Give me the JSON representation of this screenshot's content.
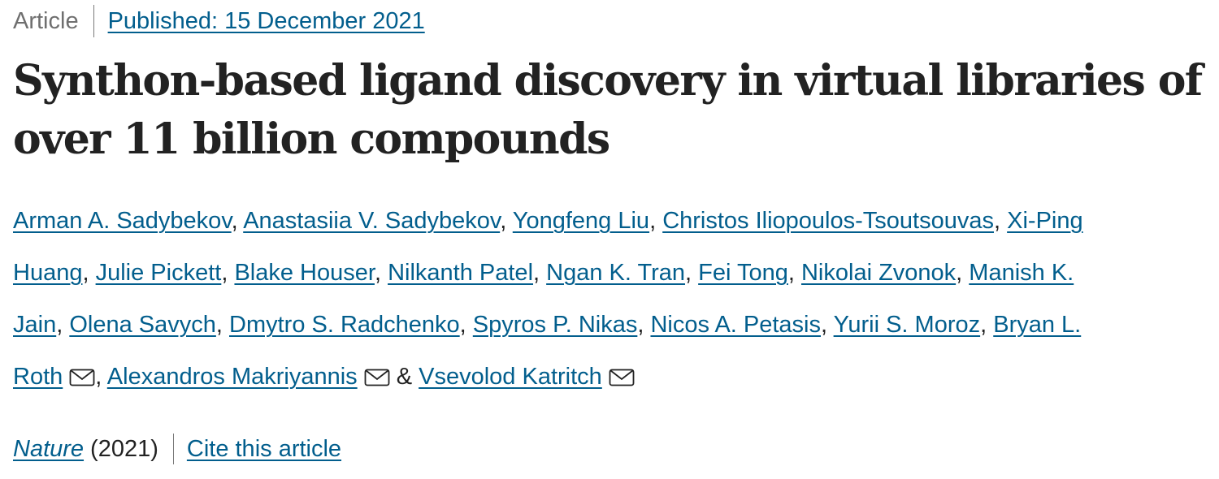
{
  "header": {
    "article_type": "Article",
    "published_label": "Published: 15 December 2021"
  },
  "title_lines": [
    "Synthon-based ligand discovery in virtual libraries of",
    "over 11 billion compounds"
  ],
  "authors": {
    "conjunction": "&",
    "separator": ",",
    "list": [
      "Arman A. Sadybekov",
      "Anastasiia V. Sadybekov",
      "Yongfeng Liu",
      "Christos Iliopoulos-Tsoutsouvas",
      "Xi-Ping Huang",
      "Julie Pickett",
      "Blake Houser",
      "Nilkanth Patel",
      "Ngan K. Tran",
      "Fei Tong",
      "Nikolai Zvonok",
      "Manish K. Jain",
      "Olena Savych",
      "Dmytro S. Radchenko",
      "Spyros P. Nikas",
      "Nicos A. Petasis",
      "Yurii S. Moroz",
      "Bryan L. Roth",
      "Alexandros Makriyannis",
      "Vsevolod Katritch"
    ],
    "lines": [
      [
        {
          "text": "Arman A. Sadybekov",
          "sep": ","
        },
        {
          "text": "Anastasiia V. Sadybekov",
          "sep": ","
        },
        {
          "text": "Yongfeng Liu",
          "sep": ","
        },
        {
          "text": "Christos Iliopoulos-Tsoutsouvas",
          "sep": ","
        },
        {
          "text": "Xi-Ping",
          "sep": ""
        }
      ],
      [
        {
          "text": "Huang",
          "sep": ","
        },
        {
          "text": "Julie Pickett",
          "sep": ","
        },
        {
          "text": "Blake Houser",
          "sep": ","
        },
        {
          "text": "Nilkanth Patel",
          "sep": ","
        },
        {
          "text": "Ngan K. Tran",
          "sep": ","
        },
        {
          "text": "Fei Tong",
          "sep": ","
        },
        {
          "text": "Nikolai Zvonok",
          "sep": ","
        },
        {
          "text": "Manish K.",
          "sep": ""
        }
      ],
      [
        {
          "text": "Jain",
          "sep": ","
        },
        {
          "text": "Olena Savych",
          "sep": ","
        },
        {
          "text": "Dmytro S. Radchenko",
          "sep": ","
        },
        {
          "text": "Spyros P. Nikas",
          "sep": ","
        },
        {
          "text": "Nicos A. Petasis",
          "sep": ","
        },
        {
          "text": "Yurii S. Moroz",
          "sep": ","
        },
        {
          "text": "Bryan L.",
          "sep": ""
        }
      ],
      [
        {
          "text": "Roth",
          "sep": ",",
          "mail": true
        },
        {
          "text": "Alexandros Makriyannis",
          "sep": "&",
          "mail": true
        },
        {
          "text": "Vsevolod Katritch",
          "sep": "",
          "mail": true
        }
      ]
    ],
    "mail_icon": "envelope-icon"
  },
  "citation": {
    "journal": "Nature",
    "year": "(2021)",
    "cite_label": "Cite this article"
  },
  "colors": {
    "link": "#025e8d",
    "text": "#222222",
    "muted": "#6f6f6f"
  }
}
